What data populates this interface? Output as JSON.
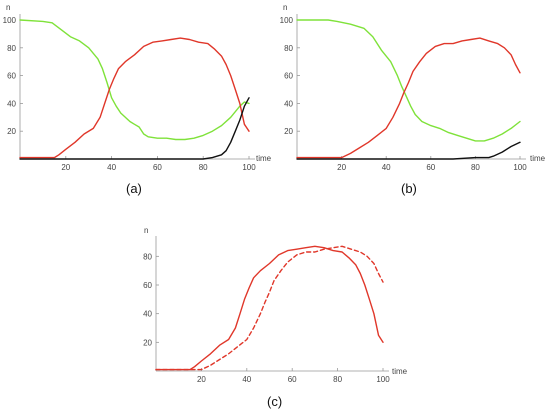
{
  "colors": {
    "green": "#7fe23a",
    "red": "#e0372a",
    "black": "#111111"
  },
  "chart_data": [
    {
      "id": "a",
      "type": "line",
      "panel_label": "(a)",
      "xlabel": "time",
      "ylabel": "n",
      "xlim": [
        0,
        100
      ],
      "ylim": [
        0,
        100
      ],
      "xticks": [
        20,
        40,
        60,
        80,
        100
      ],
      "yticks": [
        20,
        40,
        60,
        80,
        100
      ],
      "series": [
        {
          "color": "green",
          "style": "solid",
          "points": [
            [
              0,
              100
            ],
            [
              10,
              99
            ],
            [
              14,
              98
            ],
            [
              18,
              93
            ],
            [
              22,
              88
            ],
            [
              26,
              85
            ],
            [
              30,
              80
            ],
            [
              34,
              72
            ],
            [
              36,
              65
            ],
            [
              38,
              55
            ],
            [
              40,
              44
            ],
            [
              42,
              38
            ],
            [
              44,
              33
            ],
            [
              46,
              30
            ],
            [
              48,
              27
            ],
            [
              50,
              25
            ],
            [
              52,
              23
            ],
            [
              54,
              18
            ],
            [
              56,
              16
            ],
            [
              60,
              15
            ],
            [
              64,
              15
            ],
            [
              68,
              14
            ],
            [
              72,
              14
            ],
            [
              76,
              15
            ],
            [
              80,
              17
            ],
            [
              84,
              20
            ],
            [
              88,
              24
            ],
            [
              92,
              30
            ],
            [
              94,
              34
            ],
            [
              96,
              38
            ],
            [
              98,
              41
            ],
            [
              100,
              40
            ]
          ]
        },
        {
          "color": "red",
          "style": "solid",
          "points": [
            [
              0,
              1
            ],
            [
              15,
              1
            ],
            [
              17,
              3
            ],
            [
              20,
              7
            ],
            [
              24,
              12
            ],
            [
              28,
              18
            ],
            [
              32,
              22
            ],
            [
              35,
              30
            ],
            [
              37,
              40
            ],
            [
              39,
              50
            ],
            [
              41,
              58
            ],
            [
              43,
              65
            ],
            [
              46,
              70
            ],
            [
              50,
              75
            ],
            [
              54,
              81
            ],
            [
              58,
              84
            ],
            [
              62,
              85
            ],
            [
              66,
              86
            ],
            [
              70,
              87
            ],
            [
              74,
              86
            ],
            [
              78,
              84
            ],
            [
              82,
              83
            ],
            [
              85,
              79
            ],
            [
              88,
              74
            ],
            [
              90,
              68
            ],
            [
              92,
              60
            ],
            [
              94,
              50
            ],
            [
              96,
              40
            ],
            [
              98,
              25
            ],
            [
              100,
              20
            ]
          ]
        },
        {
          "color": "black",
          "style": "solid",
          "points": [
            [
              0,
              0
            ],
            [
              80,
              0
            ],
            [
              84,
              1
            ],
            [
              88,
              3
            ],
            [
              90,
              6
            ],
            [
              92,
              12
            ],
            [
              94,
              20
            ],
            [
              96,
              28
            ],
            [
              98,
              38
            ],
            [
              100,
              44
            ]
          ]
        }
      ]
    },
    {
      "id": "b",
      "type": "line",
      "panel_label": "(b)",
      "xlabel": "time",
      "ylabel": "n",
      "xlim": [
        0,
        100
      ],
      "ylim": [
        0,
        100
      ],
      "xticks": [
        20,
        40,
        60,
        80,
        100
      ],
      "yticks": [
        20,
        40,
        60,
        80,
        100
      ],
      "series": [
        {
          "color": "green",
          "style": "solid",
          "points": [
            [
              0,
              100
            ],
            [
              14,
              100
            ],
            [
              18,
              99
            ],
            [
              24,
              97
            ],
            [
              30,
              94
            ],
            [
              34,
              88
            ],
            [
              38,
              78
            ],
            [
              42,
              70
            ],
            [
              45,
              60
            ],
            [
              47,
              52
            ],
            [
              49,
              45
            ],
            [
              51,
              38
            ],
            [
              53,
              32
            ],
            [
              56,
              27
            ],
            [
              60,
              24
            ],
            [
              64,
              22
            ],
            [
              68,
              19
            ],
            [
              72,
              17
            ],
            [
              76,
              15
            ],
            [
              80,
              13
            ],
            [
              84,
              13
            ],
            [
              88,
              15
            ],
            [
              92,
              18
            ],
            [
              96,
              22
            ],
            [
              100,
              27
            ]
          ]
        },
        {
          "color": "red",
          "style": "solid",
          "points": [
            [
              0,
              1
            ],
            [
              20,
              1
            ],
            [
              24,
              4
            ],
            [
              28,
              8
            ],
            [
              32,
              12
            ],
            [
              36,
              17
            ],
            [
              40,
              22
            ],
            [
              43,
              30
            ],
            [
              46,
              40
            ],
            [
              48,
              48
            ],
            [
              50,
              55
            ],
            [
              52,
              63
            ],
            [
              55,
              70
            ],
            [
              58,
              76
            ],
            [
              62,
              81
            ],
            [
              66,
              83
            ],
            [
              70,
              83
            ],
            [
              74,
              85
            ],
            [
              78,
              86
            ],
            [
              82,
              87
            ],
            [
              86,
              85
            ],
            [
              90,
              83
            ],
            [
              93,
              80
            ],
            [
              96,
              75
            ],
            [
              98,
              68
            ],
            [
              100,
              62
            ]
          ]
        },
        {
          "color": "black",
          "style": "solid",
          "points": [
            [
              0,
              0
            ],
            [
              70,
              0
            ],
            [
              80,
              1
            ],
            [
              86,
              1
            ],
            [
              88,
              2
            ],
            [
              92,
              5
            ],
            [
              96,
              9
            ],
            [
              100,
              12
            ]
          ]
        }
      ]
    },
    {
      "id": "c",
      "type": "line",
      "panel_label": "(c)",
      "xlabel": "time",
      "ylabel": "n",
      "xlim": [
        0,
        100
      ],
      "ylim": [
        0,
        90
      ],
      "xticks": [
        20,
        40,
        60,
        80,
        100
      ],
      "yticks": [
        20,
        40,
        60,
        80
      ],
      "series": [
        {
          "color": "red",
          "style": "solid",
          "points": [
            [
              0,
              1
            ],
            [
              15,
              1
            ],
            [
              17,
              3
            ],
            [
              20,
              7
            ],
            [
              24,
              12
            ],
            [
              28,
              18
            ],
            [
              32,
              22
            ],
            [
              35,
              30
            ],
            [
              37,
              40
            ],
            [
              39,
              50
            ],
            [
              41,
              58
            ],
            [
              43,
              65
            ],
            [
              46,
              70
            ],
            [
              50,
              75
            ],
            [
              54,
              81
            ],
            [
              58,
              84
            ],
            [
              62,
              85
            ],
            [
              66,
              86
            ],
            [
              70,
              87
            ],
            [
              74,
              86
            ],
            [
              78,
              84
            ],
            [
              82,
              83
            ],
            [
              85,
              79
            ],
            [
              88,
              74
            ],
            [
              90,
              68
            ],
            [
              92,
              60
            ],
            [
              94,
              50
            ],
            [
              96,
              40
            ],
            [
              98,
              25
            ],
            [
              100,
              20
            ]
          ]
        },
        {
          "color": "red",
          "style": "dashed",
          "points": [
            [
              0,
              1
            ],
            [
              20,
              1
            ],
            [
              24,
              4
            ],
            [
              28,
              8
            ],
            [
              32,
              12
            ],
            [
              36,
              17
            ],
            [
              40,
              22
            ],
            [
              43,
              30
            ],
            [
              46,
              40
            ],
            [
              48,
              48
            ],
            [
              50,
              55
            ],
            [
              52,
              63
            ],
            [
              55,
              70
            ],
            [
              58,
              76
            ],
            [
              62,
              81
            ],
            [
              66,
              83
            ],
            [
              70,
              83
            ],
            [
              74,
              85
            ],
            [
              78,
              86
            ],
            [
              82,
              87
            ],
            [
              86,
              85
            ],
            [
              90,
              83
            ],
            [
              93,
              80
            ],
            [
              96,
              75
            ],
            [
              98,
              68
            ],
            [
              100,
              62
            ]
          ]
        }
      ]
    }
  ]
}
